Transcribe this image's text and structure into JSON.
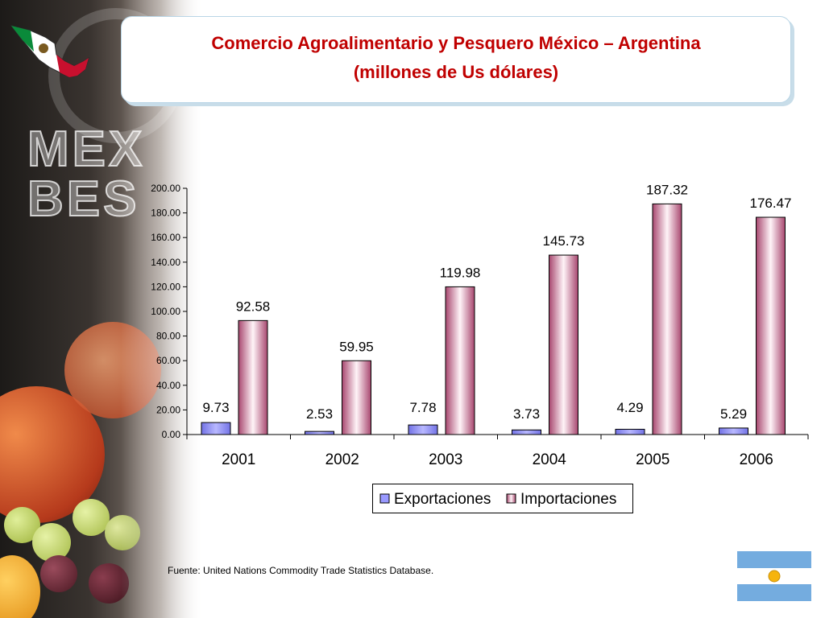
{
  "title": {
    "line1": "Comercio Agroalimentario y Pesquero México – Argentina",
    "line2": "(millones de Us dólares)"
  },
  "source_note": "Fuente: United Nations Commodity Trade Statistics Database.",
  "logo": {
    "text_line1": "MEX",
    "text_line2": "BES"
  },
  "colors": {
    "title": "#c00000",
    "exportaciones": "#9999ff",
    "importaciones": "#993366",
    "flag_blue": "#74acdf",
    "flag_sun": "#f6b40e"
  },
  "chart_data": {
    "type": "bar",
    "categories": [
      "2001",
      "2002",
      "2003",
      "2004",
      "2005",
      "2006"
    ],
    "series": [
      {
        "name": "Exportaciones",
        "values": [
          9.73,
          2.53,
          7.78,
          3.73,
          4.29,
          5.29
        ],
        "labels": [
          "9.73",
          "2.53",
          "7.78",
          "3.73",
          "4.29",
          "5.29"
        ]
      },
      {
        "name": "Importaciones",
        "values": [
          92.58,
          59.95,
          119.98,
          145.73,
          187.32,
          176.47
        ],
        "labels": [
          "92.58",
          "59.95",
          "119.98",
          "145.73",
          "187.32",
          "176.47"
        ]
      }
    ],
    "yticks": [
      "0.00",
      "20.00",
      "40.00",
      "60.00",
      "80.00",
      "100.00",
      "120.00",
      "140.00",
      "160.00",
      "180.00",
      "200.00"
    ],
    "ylim": [
      0,
      200
    ],
    "legend_position": "bottom"
  }
}
